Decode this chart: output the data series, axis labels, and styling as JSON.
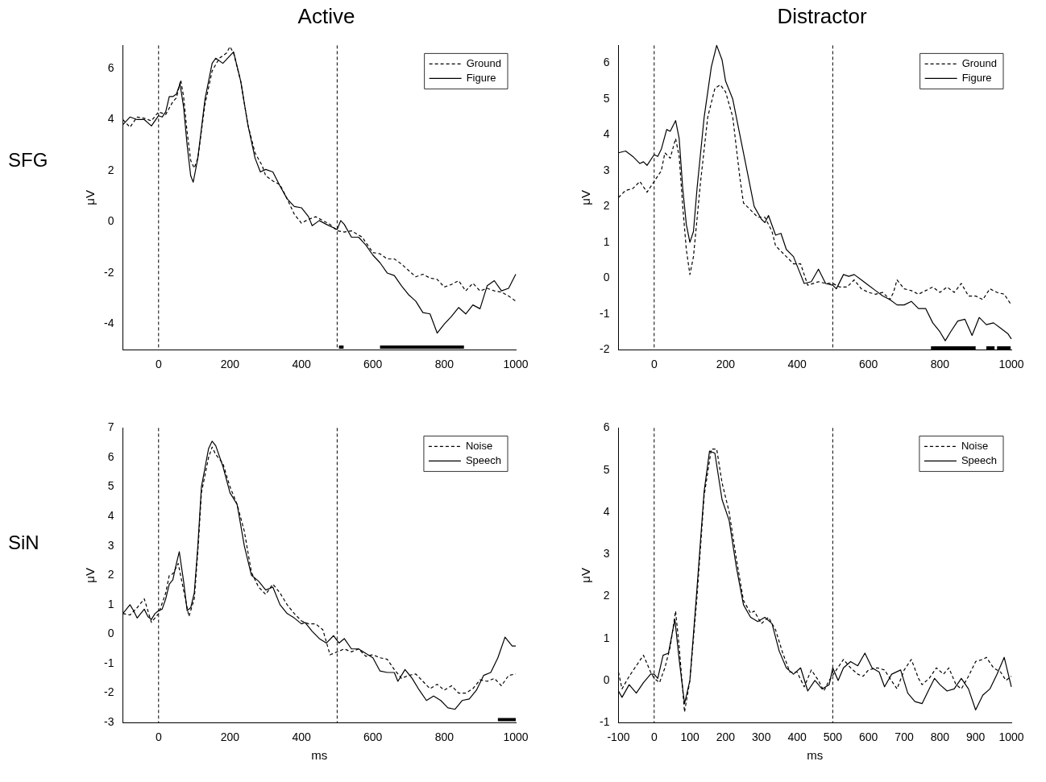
{
  "chart_data": [
    {
      "type": "line",
      "title": "Active",
      "ylabel": "μV",
      "annotations": [
        "SFG"
      ],
      "xlim": [
        -100,
        1000
      ],
      "xticks": [
        0,
        200,
        400,
        600,
        800,
        1000
      ],
      "ylim": [
        -5,
        6.9
      ],
      "yticks": [
        -4,
        -2,
        0,
        2,
        4,
        6
      ],
      "grid": false,
      "legend": "top right",
      "marker": "none",
      "ref_lines": [
        {
          "axis": "x",
          "value": 0,
          "color": "#000000",
          "line_style": "dashed"
        },
        {
          "axis": "x",
          "value": 500,
          "color": "#000000",
          "line_style": "dashed"
        }
      ],
      "series": [
        {
          "color": "#000000",
          "x": [
            505,
            518,
            519,
            620,
            855
          ],
          "values": [
            -4.9,
            -4.9,
            null,
            -4.9,
            -4.9
          ]
        },
        {
          "name": "Ground",
          "color": "#000000",
          "line_style": "dashed",
          "x": [
            -100,
            -80,
            -60,
            -40,
            -20,
            0,
            20,
            40,
            50,
            62,
            70,
            80,
            90,
            100,
            110,
            130,
            150,
            170,
            190,
            200,
            210,
            230,
            250,
            270,
            290,
            300,
            320,
            340,
            360,
            380,
            400,
            420,
            440,
            460,
            480,
            500,
            520,
            540,
            570,
            600,
            620,
            640,
            660,
            680,
            700,
            720,
            740,
            760,
            780,
            800,
            820,
            840,
            860,
            880,
            900,
            920,
            940,
            960,
            980,
            1000
          ],
          "values": [
            4.0,
            3.7,
            4.1,
            4.05,
            3.95,
            4.3,
            4.2,
            4.7,
            4.85,
            5.55,
            4.9,
            3.5,
            2.4,
            2.1,
            2.5,
            4.6,
            5.9,
            6.4,
            6.6,
            6.85,
            6.6,
            5.5,
            3.8,
            2.7,
            2.2,
            1.8,
            1.6,
            1.45,
            0.9,
            0.3,
            -0.05,
            0.1,
            0.2,
            0.05,
            -0.1,
            -0.35,
            -0.4,
            -0.35,
            -0.6,
            -1.2,
            -1.25,
            -1.45,
            -1.45,
            -1.65,
            -1.9,
            -2.15,
            -2.05,
            -2.2,
            -2.25,
            -2.55,
            -2.45,
            -2.3,
            -2.7,
            -2.4,
            -2.7,
            -2.6,
            -2.7,
            -2.75,
            -2.9,
            -3.1
          ]
        },
        {
          "name": "Figure",
          "color": "#000000",
          "line_style": "solid",
          "x": [
            -100,
            -80,
            -60,
            -40,
            -20,
            0,
            10,
            20,
            30,
            40,
            50,
            60,
            70,
            80,
            90,
            97,
            110,
            130,
            150,
            160,
            180,
            200,
            210,
            230,
            250,
            270,
            285,
            300,
            320,
            340,
            360,
            380,
            400,
            420,
            430,
            450,
            470,
            500,
            510,
            520,
            540,
            560,
            580,
            600,
            620,
            640,
            660,
            680,
            700,
            720,
            740,
            760,
            780,
            800,
            820,
            840,
            860,
            880,
            900,
            920,
            940,
            960,
            980,
            1000
          ],
          "values": [
            3.8,
            4.1,
            4.0,
            4.0,
            3.75,
            4.15,
            4.1,
            4.3,
            4.9,
            4.9,
            5.0,
            5.4,
            4.5,
            3.0,
            1.8,
            1.55,
            2.5,
            4.8,
            6.2,
            6.4,
            6.2,
            6.5,
            6.65,
            5.5,
            3.8,
            2.5,
            1.95,
            2.05,
            1.95,
            1.4,
            0.9,
            0.6,
            0.55,
            0.2,
            -0.15,
            0.05,
            -0.1,
            -0.3,
            0.05,
            -0.1,
            -0.6,
            -0.6,
            -0.9,
            -1.3,
            -1.6,
            -2.0,
            -2.1,
            -2.5,
            -2.85,
            -3.1,
            -3.55,
            -3.6,
            -4.35,
            -4.0,
            -3.7,
            -3.35,
            -3.6,
            -3.25,
            -3.4,
            -2.5,
            -2.3,
            -2.7,
            -2.6,
            -2.05
          ]
        }
      ]
    },
    {
      "type": "line",
      "title": "Distractor",
      "ylabel": "μV",
      "xlim": [
        -100,
        1000
      ],
      "xticks": [
        0,
        200,
        400,
        600,
        800,
        1000
      ],
      "ylim": [
        -2,
        6.5
      ],
      "yticks": [
        -2,
        -1,
        0,
        1,
        2,
        3,
        4,
        5,
        6
      ],
      "grid": false,
      "legend": "top right",
      "marker": "none",
      "ref_lines": [
        {
          "axis": "x",
          "value": 0,
          "color": "#000000",
          "line_style": "dashed"
        },
        {
          "axis": "x",
          "value": 500,
          "color": "#000000",
          "line_style": "dashed"
        }
      ],
      "series": [
        {
          "color": "#000000",
          "x": [
            775,
            900,
            910,
            930,
            953,
            956,
            960,
            998
          ],
          "values": [
            -1.95,
            -1.95,
            null,
            -1.95,
            -1.95,
            null,
            -1.95,
            -1.95
          ]
        },
        {
          "name": "Ground",
          "color": "#000000",
          "line_style": "dashed",
          "x": [
            -100,
            -80,
            -60,
            -40,
            -20,
            0,
            20,
            30,
            45,
            60,
            70,
            80,
            90,
            100,
            110,
            130,
            150,
            170,
            185,
            200,
            220,
            240,
            250,
            270,
            290,
            310,
            330,
            340,
            370,
            390,
            410,
            430,
            460,
            480,
            500,
            520,
            540,
            560,
            580,
            600,
            620,
            640,
            660,
            670,
            680,
            700,
            720,
            740,
            760,
            780,
            800,
            820,
            840,
            860,
            880,
            900,
            920,
            940,
            960,
            980,
            1000
          ],
          "values": [
            2.25,
            2.45,
            2.5,
            2.7,
            2.4,
            2.7,
            3.0,
            3.5,
            3.35,
            3.9,
            3.4,
            2.0,
            0.8,
            0.1,
            0.6,
            2.7,
            4.5,
            5.3,
            5.4,
            5.2,
            4.5,
            2.8,
            2.1,
            1.9,
            1.7,
            1.7,
            1.3,
            0.9,
            0.6,
            0.4,
            0.4,
            -0.2,
            -0.1,
            -0.15,
            -0.15,
            -0.25,
            -0.25,
            -0.05,
            -0.3,
            -0.4,
            -0.45,
            -0.4,
            -0.6,
            -0.4,
            -0.05,
            -0.3,
            -0.35,
            -0.45,
            -0.35,
            -0.25,
            -0.4,
            -0.25,
            -0.4,
            -0.15,
            -0.5,
            -0.5,
            -0.6,
            -0.3,
            -0.4,
            -0.45,
            -0.75
          ]
        },
        {
          "name": "Figure",
          "color": "#000000",
          "line_style": "solid",
          "x": [
            -100,
            -80,
            -60,
            -40,
            -30,
            -20,
            0,
            10,
            20,
            35,
            45,
            60,
            70,
            80,
            90,
            100,
            110,
            120,
            140,
            160,
            175,
            190,
            200,
            220,
            240,
            260,
            280,
            300,
            310,
            320,
            340,
            355,
            370,
            390,
            410,
            420,
            440,
            460,
            480,
            500,
            510,
            530,
            545,
            560,
            580,
            600,
            620,
            640,
            660,
            680,
            700,
            720,
            740,
            760,
            780,
            800,
            815,
            830,
            850,
            870,
            890,
            910,
            930,
            950,
            970,
            990,
            1000
          ],
          "values": [
            3.5,
            3.55,
            3.4,
            3.2,
            3.25,
            3.15,
            3.45,
            3.4,
            3.6,
            4.15,
            4.1,
            4.4,
            3.9,
            2.5,
            1.5,
            1.0,
            1.3,
            2.5,
            4.5,
            5.9,
            6.5,
            6.1,
            5.5,
            5.0,
            4.0,
            3.0,
            2.0,
            1.65,
            1.55,
            1.75,
            1.2,
            1.25,
            0.8,
            0.6,
            0.1,
            -0.15,
            -0.1,
            0.25,
            -0.15,
            -0.2,
            -0.3,
            0.1,
            0.05,
            0.1,
            -0.05,
            -0.2,
            -0.35,
            -0.5,
            -0.6,
            -0.75,
            -0.75,
            -0.65,
            -0.85,
            -0.85,
            -1.25,
            -1.5,
            -1.75,
            -1.5,
            -1.2,
            -1.15,
            -1.6,
            -1.1,
            -1.3,
            -1.25,
            -1.4,
            -1.55,
            -1.7
          ]
        }
      ]
    },
    {
      "type": "line",
      "xlabel": "ms",
      "ylabel": "μV",
      "annotations": [
        "SiN"
      ],
      "xlim": [
        -100,
        1000
      ],
      "xticks": [
        0,
        200,
        400,
        600,
        800,
        1000
      ],
      "ylim": [
        -3,
        7
      ],
      "yticks": [
        -3,
        -2,
        -1,
        0,
        1,
        2,
        3,
        4,
        5,
        6,
        7
      ],
      "grid": false,
      "legend": "top right",
      "marker": "none",
      "ref_lines": [
        {
          "axis": "x",
          "value": 0,
          "color": "#000000",
          "line_style": "dashed"
        },
        {
          "axis": "x",
          "value": 500,
          "color": "#000000",
          "line_style": "dashed"
        }
      ],
      "series": [
        {
          "color": "#000000",
          "x": [
            950,
            1000
          ],
          "values": [
            -2.9,
            -2.9
          ]
        },
        {
          "name": "Noise",
          "color": "#000000",
          "line_style": "dashed",
          "x": [
            -100,
            -80,
            -60,
            -40,
            -20,
            0,
            20,
            30,
            40,
            55,
            70,
            85,
            100,
            110,
            120,
            140,
            150,
            160,
            180,
            200,
            220,
            240,
            260,
            280,
            300,
            320,
            340,
            360,
            380,
            400,
            420,
            440,
            460,
            480,
            500,
            520,
            540,
            560,
            580,
            600,
            620,
            640,
            660,
            680,
            700,
            720,
            740,
            760,
            780,
            800,
            820,
            840,
            860,
            880,
            900,
            920,
            940,
            960,
            980,
            1000
          ],
          "values": [
            0.7,
            0.65,
            0.9,
            1.2,
            0.4,
            0.7,
            1.4,
            2.0,
            2.05,
            2.4,
            1.5,
            0.6,
            1.2,
            2.8,
            4.8,
            6.0,
            6.35,
            6.1,
            5.8,
            5.0,
            4.4,
            3.5,
            2.1,
            1.6,
            1.35,
            1.7,
            1.4,
            1.0,
            0.7,
            0.45,
            0.35,
            0.35,
            0.15,
            -0.7,
            -0.6,
            -0.5,
            -0.6,
            -0.5,
            -0.75,
            -0.7,
            -0.8,
            -0.85,
            -1.2,
            -1.5,
            -1.4,
            -1.35,
            -1.6,
            -1.85,
            -1.7,
            -1.9,
            -1.75,
            -2.0,
            -2.0,
            -1.85,
            -1.55,
            -1.6,
            -1.5,
            -1.75,
            -1.4,
            -1.35
          ]
        },
        {
          "name": "Speech",
          "color": "#000000",
          "line_style": "solid",
          "x": [
            -100,
            -80,
            -70,
            -60,
            -40,
            -30,
            -20,
            -10,
            0,
            10,
            20,
            30,
            40,
            50,
            58,
            70,
            80,
            90,
            100,
            110,
            120,
            140,
            150,
            160,
            180,
            200,
            220,
            240,
            260,
            280,
            300,
            320,
            340,
            360,
            380,
            400,
            410,
            430,
            450,
            470,
            490,
            505,
            520,
            540,
            560,
            580,
            600,
            620,
            640,
            660,
            670,
            690,
            710,
            730,
            750,
            770,
            790,
            810,
            830,
            850,
            870,
            890,
            910,
            930,
            950,
            970,
            990,
            1000
          ],
          "values": [
            0.7,
            1.0,
            0.8,
            0.55,
            0.85,
            0.6,
            0.5,
            0.7,
            0.8,
            0.85,
            1.2,
            1.7,
            1.85,
            2.4,
            2.8,
            1.8,
            0.8,
            0.9,
            1.4,
            3.0,
            5.0,
            6.3,
            6.55,
            6.4,
            5.7,
            4.8,
            4.4,
            3.0,
            2.0,
            1.8,
            1.5,
            1.6,
            1.0,
            0.7,
            0.55,
            0.35,
            0.4,
            0.1,
            -0.15,
            -0.3,
            -0.05,
            -0.3,
            -0.15,
            -0.5,
            -0.5,
            -0.65,
            -0.8,
            -1.25,
            -1.3,
            -1.3,
            -1.6,
            -1.2,
            -1.5,
            -1.9,
            -2.25,
            -2.1,
            -2.25,
            -2.5,
            -2.55,
            -2.25,
            -2.2,
            -1.9,
            -1.4,
            -1.3,
            -0.8,
            -0.1,
            -0.4,
            -0.4
          ]
        }
      ]
    },
    {
      "type": "line",
      "xlabel": "ms",
      "ylabel": "μV",
      "xlim": [
        -100,
        1000
      ],
      "xticks": [
        -100,
        0,
        100,
        200,
        300,
        400,
        500,
        600,
        700,
        800,
        900,
        1000
      ],
      "ylim": [
        -1,
        6
      ],
      "yticks": [
        -1,
        0,
        1,
        2,
        3,
        4,
        5,
        6
      ],
      "grid": false,
      "legend": "top right",
      "marker": "none",
      "ref_lines": [
        {
          "axis": "x",
          "value": 0,
          "color": "#000000",
          "line_style": "dashed"
        },
        {
          "axis": "x",
          "value": 500,
          "color": "#000000",
          "line_style": "dashed"
        }
      ],
      "series": [
        {
          "name": "Noise",
          "color": "#000000",
          "line_style": "dashed",
          "x": [
            -100,
            -90,
            -70,
            -50,
            -30,
            -10,
            0,
            15,
            30,
            45,
            60,
            70,
            85,
            100,
            120,
            140,
            160,
            175,
            190,
            210,
            230,
            250,
            270,
            280,
            300,
            320,
            340,
            360,
            380,
            400,
            420,
            440,
            460,
            475,
            490,
            510,
            530,
            550,
            570,
            585,
            600,
            625,
            645,
            660,
            680,
            700,
            720,
            740,
            750,
            770,
            790,
            810,
            825,
            845,
            860,
            880,
            900,
            920,
            930,
            950,
            970,
            985,
            1000
          ],
          "values": [
            0.2,
            -0.2,
            0.1,
            0.35,
            0.6,
            0.2,
            0.05,
            -0.05,
            0.3,
            0.8,
            1.65,
            0.8,
            -0.75,
            0.0,
            2.0,
            4.4,
            5.5,
            5.5,
            4.7,
            4.0,
            2.9,
            1.9,
            1.6,
            1.65,
            1.35,
            1.5,
            1.2,
            0.65,
            0.2,
            0.2,
            -0.15,
            0.25,
            0.0,
            -0.25,
            0.0,
            0.25,
            0.5,
            0.3,
            0.15,
            0.1,
            0.25,
            0.3,
            0.25,
            0.05,
            -0.2,
            0.25,
            0.5,
            0.05,
            -0.1,
            0.05,
            0.3,
            0.15,
            0.3,
            -0.1,
            -0.2,
            0.1,
            0.45,
            0.5,
            0.55,
            0.3,
            0.2,
            0.0,
            0.1
          ]
        },
        {
          "name": "Speech",
          "color": "#000000",
          "line_style": "solid",
          "x": [
            -100,
            -90,
            -70,
            -50,
            -30,
            -10,
            0,
            10,
            25,
            40,
            58,
            70,
            85,
            100,
            120,
            140,
            155,
            170,
            190,
            210,
            230,
            250,
            270,
            290,
            310,
            330,
            350,
            370,
            390,
            410,
            430,
            450,
            470,
            490,
            500,
            515,
            530,
            550,
            570,
            590,
            610,
            630,
            645,
            665,
            690,
            710,
            730,
            750,
            770,
            785,
            800,
            820,
            840,
            860,
            880,
            900,
            920,
            940,
            960,
            980,
            1000
          ],
          "values": [
            -0.25,
            -0.4,
            -0.1,
            -0.3,
            -0.05,
            0.15,
            0.15,
            0.05,
            0.6,
            0.65,
            1.45,
            0.5,
            -0.55,
            0.0,
            2.2,
            4.5,
            5.45,
            5.4,
            4.3,
            3.8,
            2.7,
            1.8,
            1.5,
            1.4,
            1.5,
            1.35,
            0.7,
            0.3,
            0.15,
            0.3,
            -0.25,
            0.0,
            -0.2,
            -0.1,
            0.3,
            0.0,
            0.3,
            0.45,
            0.35,
            0.65,
            0.3,
            0.2,
            -0.15,
            0.15,
            0.25,
            -0.3,
            -0.5,
            -0.55,
            -0.2,
            0.05,
            -0.1,
            -0.25,
            -0.2,
            0.05,
            -0.2,
            -0.7,
            -0.35,
            -0.2,
            0.15,
            0.55,
            -0.15
          ]
        }
      ]
    }
  ]
}
